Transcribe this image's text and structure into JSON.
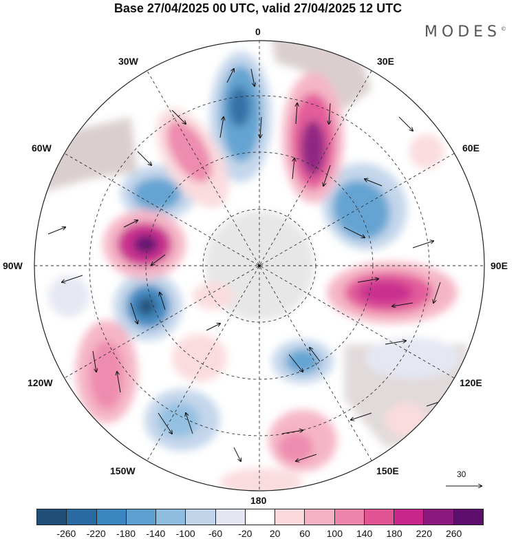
{
  "title": "Base 27/04/2025 00 UTC, valid 27/04/2025 12 UTC",
  "brand": "MODES",
  "brand_mark": "©",
  "longitude_labels": {
    "n0": "0",
    "e30": "30E",
    "e60": "60E",
    "e90": "90E",
    "e120": "120E",
    "e150": "150E",
    "s180": "180",
    "w150": "150W",
    "w120": "120W",
    "w90": "90W",
    "w60": "60W",
    "w30": "30W"
  },
  "vector_scale_label": "30",
  "colorbar": {
    "colors": [
      "#1f4e79",
      "#2a6aa2",
      "#3a86c0",
      "#5da0d0",
      "#8fbde0",
      "#c1d4ea",
      "#e4e6f2",
      "#ffffff",
      "#fadadd",
      "#f5b2c4",
      "#ee86ab",
      "#e25595",
      "#c8268a",
      "#8c1a7e",
      "#5e0f6e"
    ],
    "ticks": [
      "-260",
      "-220",
      "-180",
      "-140",
      "-100",
      "-60",
      "-20",
      "20",
      "60",
      "100",
      "140",
      "180",
      "220",
      "260"
    ]
  },
  "colors": {
    "land": "#d9d0d0",
    "antarctica": "#e6e6e6",
    "grid": "#333333"
  }
}
